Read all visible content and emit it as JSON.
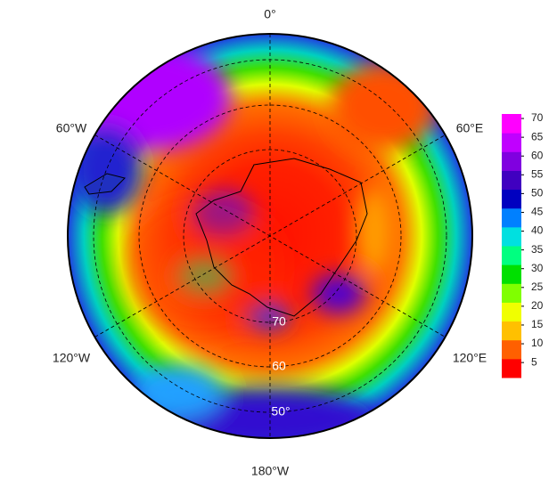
{
  "map": {
    "longitude_labels": [
      "0°",
      "60°E",
      "120°E",
      "180°W",
      "120°W",
      "60°W"
    ],
    "latitude_labels": [
      "70",
      "60",
      "50°"
    ],
    "colorbar": {
      "lim": [
        1,
        71.2
      ],
      "ticks": [
        5,
        10,
        15,
        20,
        25,
        30,
        35,
        40,
        45,
        50,
        55,
        60,
        65,
        70
      ],
      "colors": [
        "#ff0000",
        "#ff6000",
        "#ffc000",
        "#f0ff00",
        "#80ff00",
        "#00e000",
        "#00ff80",
        "#00e0e0",
        "#0080ff",
        "#0000c0",
        "#4000c0",
        "#8000e0",
        "#c000ff",
        "#ff00ff"
      ]
    }
  }
}
